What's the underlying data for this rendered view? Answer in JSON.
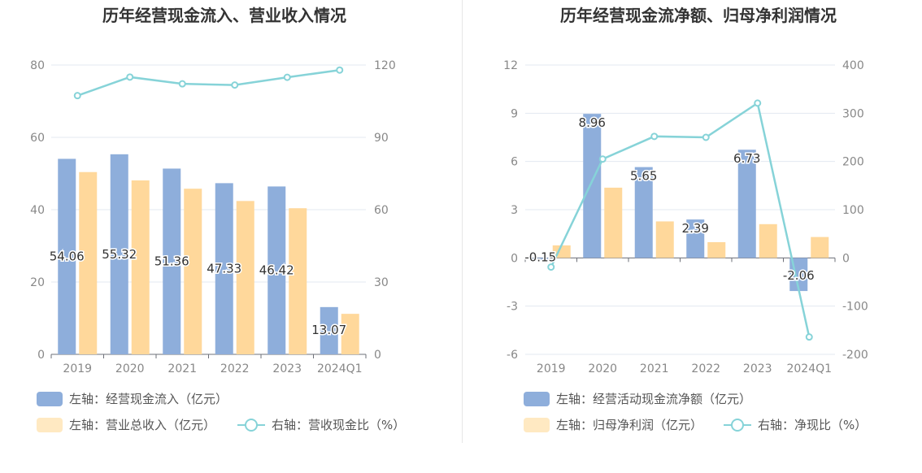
{
  "colors": {
    "bar_primary": "#8eaedb",
    "bar_secondary": "#ffd89b",
    "line": "#86d3d8",
    "axis_text": "#888888",
    "title": "#333333",
    "grid": "#e3e8f0"
  },
  "chart_data": [
    {
      "type": "bar",
      "title": "历年经营现金流入、营业收入情况",
      "categories": [
        "2019",
        "2020",
        "2021",
        "2022",
        "2023",
        "2024Q1"
      ],
      "left_ticks": [
        "80",
        "60",
        "40",
        "20",
        "0"
      ],
      "right_ticks": [
        "120",
        "90",
        "60",
        "30",
        "0"
      ],
      "ylim_left": [
        0,
        80
      ],
      "ylim_right": [
        0,
        120
      ],
      "series": [
        {
          "name": "左轴：经营现金流入（亿元）",
          "axis": "left",
          "kind": "bar",
          "values": [
            54.06,
            55.32,
            51.36,
            47.33,
            46.42,
            13.07
          ],
          "labels": [
            "54.06",
            "55.32",
            "51.36",
            "47.33",
            "46.42",
            "13.07"
          ]
        },
        {
          "name": "左轴：营业总收入（亿元）",
          "axis": "left",
          "kind": "bar",
          "values": [
            50.4,
            48.1,
            45.8,
            42.4,
            40.4,
            11.2
          ]
        },
        {
          "name": "右轴：营收现金比（%）",
          "axis": "right",
          "kind": "line",
          "values": [
            107.3,
            115.0,
            112.2,
            111.7,
            114.9,
            117.9
          ]
        }
      ],
      "grid": true,
      "legend_position": "bottom"
    },
    {
      "type": "bar",
      "title": "历年经营现金流净额、归母净利润情况",
      "categories": [
        "2019",
        "2020",
        "2021",
        "2022",
        "2023",
        "2024Q1"
      ],
      "left_ticks": [
        "12",
        "9",
        "6",
        "3",
        "0",
        "-3",
        "-6"
      ],
      "right_ticks": [
        "400",
        "300",
        "200",
        "100",
        "0",
        "-100",
        "-200"
      ],
      "ylim_left": [
        -6,
        12
      ],
      "ylim_right": [
        -200,
        400
      ],
      "series": [
        {
          "name": "左轴：经营活动现金流净额（亿元）",
          "axis": "left",
          "kind": "bar",
          "values": [
            -0.15,
            8.96,
            5.65,
            2.39,
            6.73,
            -2.06
          ],
          "labels": [
            "-0.15",
            "8.96",
            "5.65",
            "2.39",
            "6.73",
            "-2.06"
          ]
        },
        {
          "name": "左轴：归母净利润（亿元）",
          "axis": "left",
          "kind": "bar",
          "values": [
            0.78,
            4.37,
            2.27,
            0.98,
            2.1,
            1.3
          ]
        },
        {
          "name": "右轴：净现比（%）",
          "axis": "right",
          "kind": "line",
          "values": [
            -19,
            205,
            252,
            250,
            321,
            -164
          ]
        }
      ],
      "grid": true,
      "legend_position": "bottom"
    }
  ]
}
